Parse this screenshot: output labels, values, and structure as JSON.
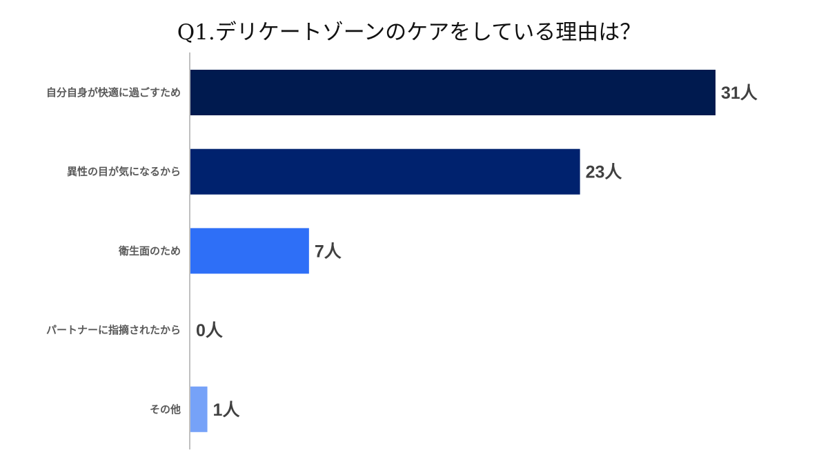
{
  "chart_data": {
    "type": "bar",
    "orientation": "horizontal",
    "title": "Q1.デリケートゾーンのケアをしている理由は？",
    "categories": [
      "自分自身が快適に過ごすため",
      "異性の目が気になるから",
      "衛生面のため",
      "パートナーに指摘されたから",
      "その他"
    ],
    "values": [
      31,
      23,
      7,
      0,
      1
    ],
    "data_labels": [
      "31人",
      "23人",
      "7人",
      "0人",
      "1人"
    ],
    "bar_colors": [
      "#001a4f",
      "#00226e",
      "#2e6ff7",
      "#2e6ff7",
      "#76a2f8"
    ],
    "xlim": [
      0,
      31
    ],
    "grid": false,
    "legend": "none"
  }
}
